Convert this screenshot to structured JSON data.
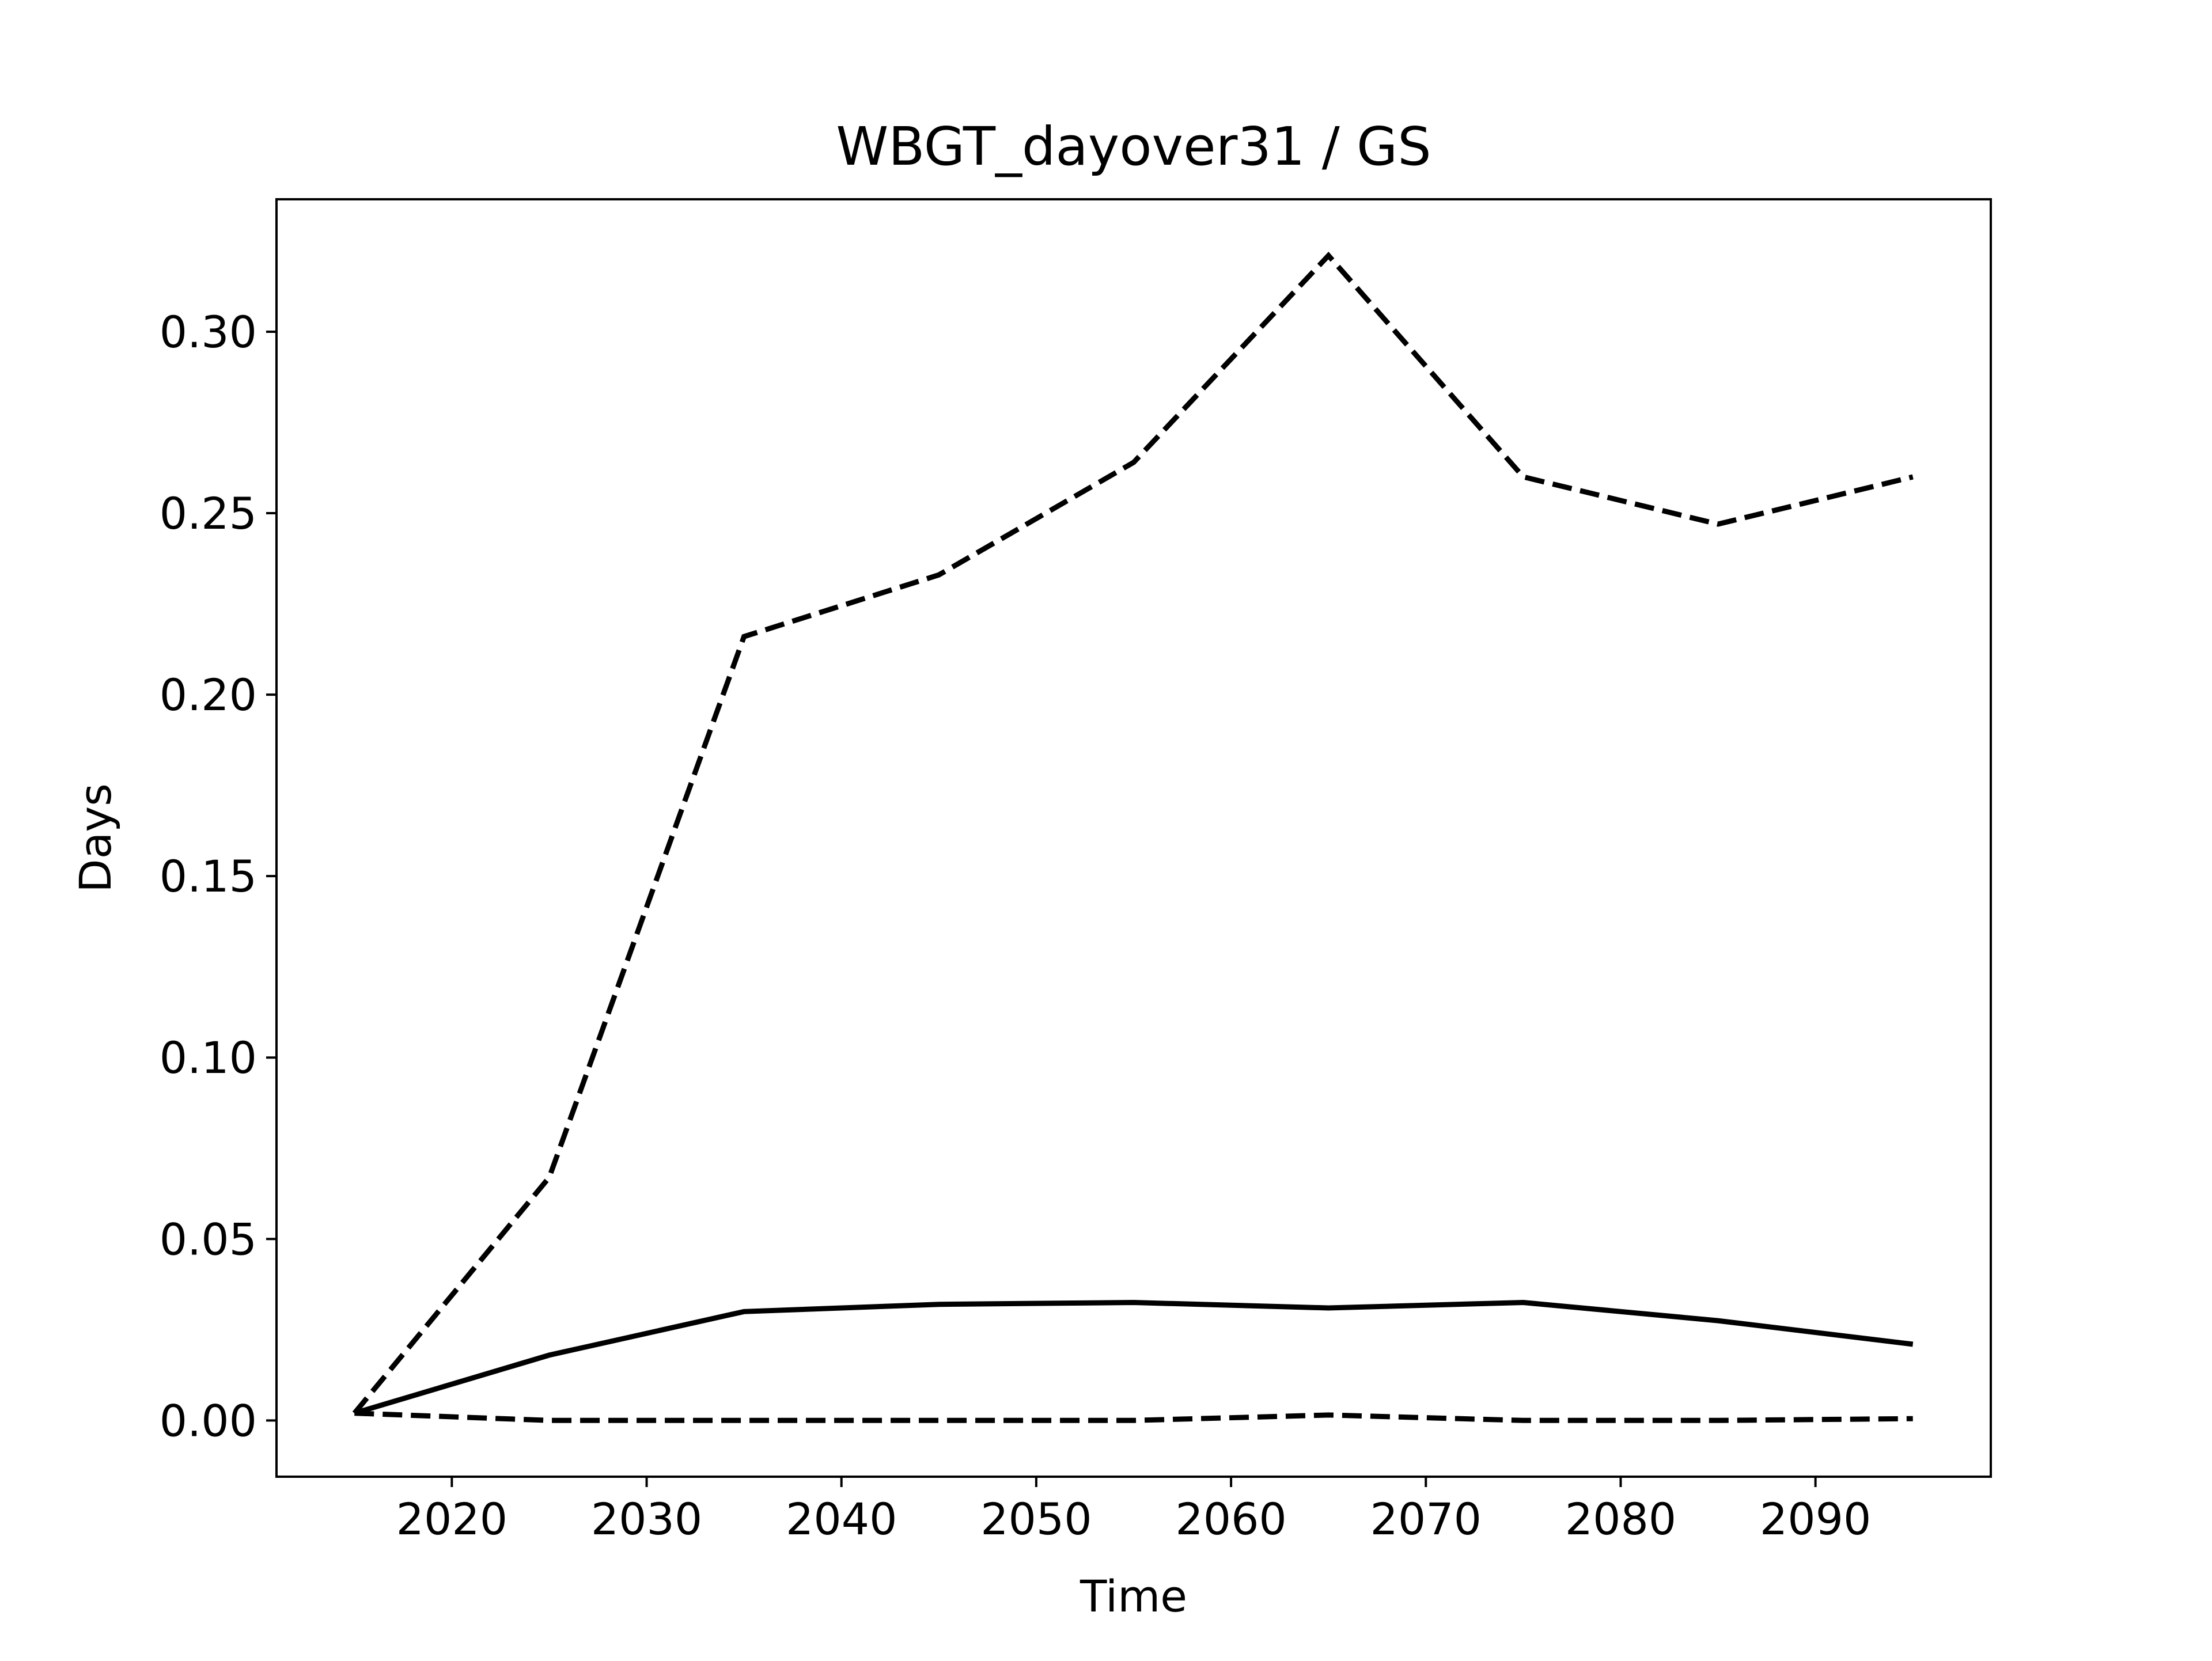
{
  "chart_data": {
    "type": "line",
    "title": "WBGT_dayover31 / GS",
    "xlabel": "Time",
    "ylabel": "Days",
    "xlim": [
      2011,
      2099
    ],
    "ylim": [
      -0.0155,
      0.3365
    ],
    "xticks": [
      2020,
      2030,
      2040,
      2050,
      2060,
      2070,
      2080,
      2090
    ],
    "xtick_labels": [
      "2020",
      "2030",
      "2040",
      "2050",
      "2060",
      "2070",
      "2080",
      "2090"
    ],
    "yticks": [
      0.0,
      0.05,
      0.1,
      0.15,
      0.2,
      0.25,
      0.3
    ],
    "ytick_labels": [
      "0.00",
      "0.05",
      "0.10",
      "0.15",
      "0.20",
      "0.25",
      "0.30"
    ],
    "grid": false,
    "x": [
      2015,
      2025,
      2035,
      2045,
      2055,
      2065,
      2075,
      2085,
      2095
    ],
    "series": [
      {
        "style": "dashed",
        "color": "#000000",
        "values": [
          0.002,
          0.067,
          0.216,
          0.233,
          0.264,
          0.321,
          0.26,
          0.247,
          0.26
        ]
      },
      {
        "style": "solid",
        "color": "#000000",
        "values": [
          0.002,
          0.018,
          0.03,
          0.032,
          0.0325,
          0.031,
          0.0325,
          0.0275,
          0.021
        ]
      },
      {
        "style": "dashed",
        "color": "#000000",
        "values": [
          0.002,
          0.0,
          0.0,
          0.0,
          0.0,
          0.0015,
          0.0,
          0.0,
          0.0005
        ]
      }
    ]
  }
}
